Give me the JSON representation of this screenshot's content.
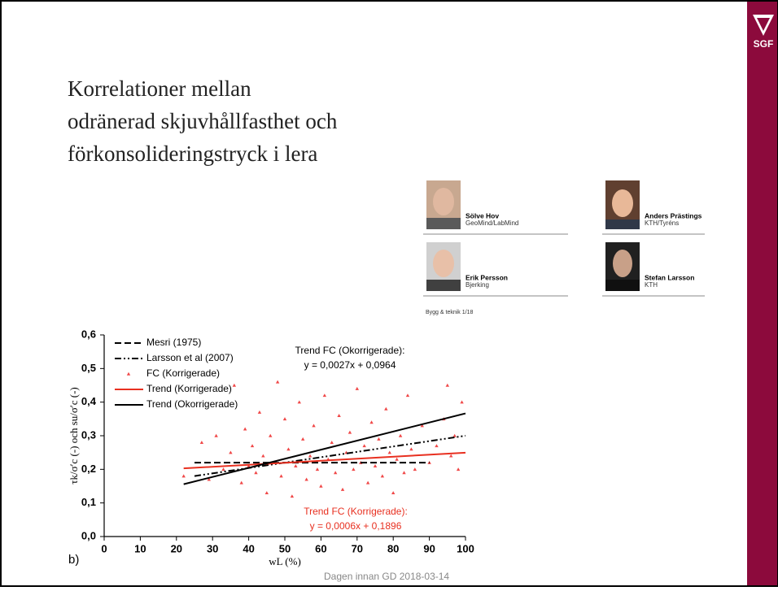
{
  "slide": {
    "title_lines": [
      "Korrelationer mellan",
      "odränerad skjuvhållfasthet och",
      "förkonsolideringstryck i lera"
    ],
    "logo": "SGF",
    "source": "Bygg & teknik 1/18",
    "panel_label": "b)",
    "footer": "Dagen innan GD 2018-03-14"
  },
  "authors": [
    {
      "name": "Sölve Hov",
      "affiliation": "GeoMind/LabMind"
    },
    {
      "name": "Anders Prästings",
      "affiliation": "KTH/Tyréns"
    },
    {
      "name": "Erik Persson",
      "affiliation": "Bjerking"
    },
    {
      "name": "Stefan Larsson",
      "affiliation": "KTH"
    }
  ],
  "chart_data": {
    "type": "scatter",
    "x_label": "wL (%)",
    "y_label": "τk/σ′c (-)  och  su/σ′c (-)",
    "xlim": [
      0,
      100
    ],
    "ylim": [
      0,
      0.6
    ],
    "xticks": [
      0,
      10,
      20,
      30,
      40,
      50,
      60,
      70,
      80,
      90,
      100
    ],
    "yticks": [
      {
        "value": 0,
        "label": "0,0"
      },
      {
        "value": 0.1,
        "label": "0,1"
      },
      {
        "value": 0.2,
        "label": "0,2"
      },
      {
        "value": 0.3,
        "label": "0,3"
      },
      {
        "value": 0.4,
        "label": "0,4"
      },
      {
        "value": 0.5,
        "label": "0,5"
      },
      {
        "value": 0.6,
        "label": "0,6"
      }
    ],
    "series": [
      {
        "name": "Mesri (1975)",
        "kind": "line",
        "style": "dashed",
        "color": "#000000",
        "x": [
          25,
          90
        ],
        "values": [
          0.22,
          0.22
        ]
      },
      {
        "name": "Larsson et al (2007)",
        "kind": "line",
        "style": "dashdot",
        "color": "#000000",
        "x": [
          25,
          100
        ],
        "values": [
          0.18,
          0.3
        ]
      },
      {
        "name": "FC (Korrigerade)",
        "kind": "points",
        "color": "#f04848",
        "x": [
          22,
          27,
          29,
          31,
          33,
          35,
          36,
          38,
          39,
          40,
          41,
          42,
          43,
          44,
          45,
          46,
          47,
          48,
          49,
          50,
          51,
          52,
          53,
          54,
          55,
          56,
          57,
          58,
          59,
          60,
          61,
          62,
          63,
          64,
          65,
          66,
          67,
          68,
          69,
          70,
          71,
          72,
          73,
          74,
          75,
          76,
          77,
          78,
          79,
          80,
          81,
          82,
          83,
          84,
          85,
          86,
          88,
          90,
          92,
          94,
          95,
          96,
          97,
          98,
          99
        ],
        "values": [
          0.18,
          0.28,
          0.17,
          0.3,
          0.2,
          0.25,
          0.45,
          0.16,
          0.32,
          0.21,
          0.27,
          0.19,
          0.37,
          0.24,
          0.13,
          0.3,
          0.22,
          0.46,
          0.18,
          0.35,
          0.26,
          0.12,
          0.21,
          0.4,
          0.29,
          0.17,
          0.24,
          0.33,
          0.2,
          0.15,
          0.42,
          0.23,
          0.28,
          0.19,
          0.36,
          0.14,
          0.25,
          0.31,
          0.2,
          0.44,
          0.22,
          0.27,
          0.16,
          0.34,
          0.21,
          0.29,
          0.18,
          0.38,
          0.25,
          0.13,
          0.23,
          0.3,
          0.19,
          0.42,
          0.26,
          0.2,
          0.33,
          0.22,
          0.27,
          0.35,
          0.45,
          0.24,
          0.3,
          0.2,
          0.4
        ]
      },
      {
        "name": "Trend (Korrigerade)",
        "kind": "line",
        "style": "solid",
        "color": "#e83020",
        "x": [
          22,
          100
        ],
        "values": [
          0.2028,
          0.2496
        ]
      },
      {
        "name": "Trend (Okorrigerade)",
        "kind": "line",
        "style": "solid",
        "color": "#000000",
        "x": [
          22,
          100
        ],
        "values": [
          0.1558,
          0.3664
        ]
      }
    ],
    "annotations": [
      {
        "lines": [
          "Trend FC (Okorrigerade):",
          "y = 0,0027x + 0,0964"
        ],
        "color": "#000000"
      },
      {
        "lines": [
          "Trend FC (Korrigerade):",
          "y = 0,0006x + 0,1896"
        ],
        "color": "#e83020"
      }
    ]
  }
}
